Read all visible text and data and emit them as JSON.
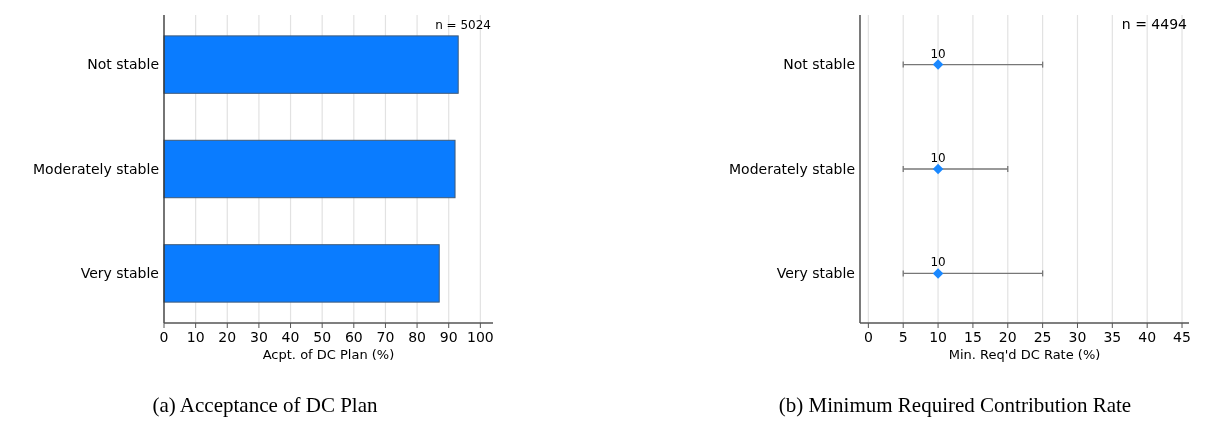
{
  "chart_data": [
    {
      "type": "bar",
      "orientation": "horizontal",
      "title": "(a) Acceptance of DC Plan",
      "xlabel": "Acpt. of DC Plan (%)",
      "categories": [
        "Not stable",
        "Moderately stable",
        "Very stable"
      ],
      "values": [
        93,
        92,
        87
      ],
      "color": "#0a7cff",
      "xlim": [
        0,
        104
      ],
      "xticks": [
        0,
        10,
        20,
        30,
        40,
        50,
        60,
        70,
        80,
        90,
        100
      ],
      "grid": "x",
      "annotations": [
        "n = 5024"
      ]
    },
    {
      "type": "scatter",
      "orientation": "horizontal",
      "title": "(b) Minimum Required Contribution Rate",
      "xlabel": "Min. Req'd DC Rate (%)",
      "categories": [
        "Not stable",
        "Moderately stable",
        "Very stable"
      ],
      "values": [
        10,
        10,
        10
      ],
      "errors": [
        [
          5,
          25
        ],
        [
          5,
          20
        ],
        [
          5,
          25
        ]
      ],
      "color": "#1a88ff",
      "marker": "diamond",
      "data_labels": true,
      "xlim": [
        -1.2,
        46
      ],
      "xticks": [
        0,
        5,
        10,
        15,
        20,
        25,
        30,
        35,
        40,
        45
      ],
      "grid": "x",
      "annotations": [
        "n = 4494"
      ]
    }
  ]
}
